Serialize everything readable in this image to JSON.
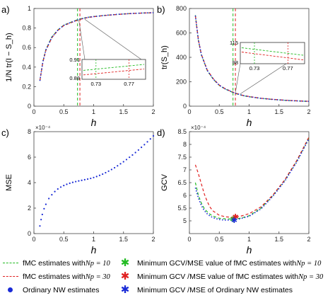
{
  "panels": [
    {
      "letter": "a)",
      "type": "line",
      "ylabel": "1/N tr(I − S_h)",
      "xlabel": "h",
      "xlim": [
        0,
        2
      ],
      "ylim": [
        0,
        1
      ],
      "xticks": [
        "0",
        "0.5",
        "1",
        "1.5",
        "2"
      ],
      "yticks": [
        "0",
        "0.2",
        "0.4",
        "0.6",
        "0.8",
        "1"
      ],
      "ytick_vals": [
        0,
        0.2,
        0.4,
        0.6,
        0.8,
        1
      ],
      "vlines": [
        0.73,
        0.77
      ],
      "inset": {
        "ytop": "0.91",
        "ybottom": "0.88",
        "x1": "0.73",
        "x2": "0.77"
      }
    },
    {
      "letter": "b)",
      "type": "line",
      "ylabel": "tr(S_h)",
      "xlabel": "h",
      "xlim": [
        0,
        2
      ],
      "ylim": [
        0,
        800
      ],
      "xticks": [
        "0",
        "0.5",
        "1",
        "1.5",
        "2"
      ],
      "yticks": [
        "0",
        "200",
        "400",
        "600",
        "800"
      ],
      "ytick_vals": [
        0,
        200,
        400,
        600,
        800
      ],
      "vlines": [
        0.73,
        0.77
      ],
      "inset": {
        "ytop": "115",
        "ybottom": "98",
        "x1": "0.73",
        "x2": "0.77"
      }
    },
    {
      "letter": "c)",
      "type": "scatter",
      "ylabel": "MSE",
      "xlabel": "h",
      "exponent": "×10⁻⁴",
      "xlim": [
        0,
        2
      ],
      "ylim": [
        0,
        8
      ],
      "xticks": [
        "0",
        "0.5",
        "1",
        "1.5",
        "2"
      ],
      "yticks": [
        "0",
        "2",
        "4",
        "6",
        "8"
      ],
      "ytick_vals": [
        0,
        2,
        4,
        6,
        8
      ]
    },
    {
      "letter": "d)",
      "type": "line",
      "ylabel": "GCV",
      "xlabel": "h",
      "exponent": "×10⁻⁴",
      "xlim": [
        0,
        2
      ],
      "ylim": [
        4.5,
        8.5
      ],
      "xticks": [
        "0",
        "0.5",
        "1",
        "1.5",
        "2"
      ],
      "yticks": [
        "5",
        "5.5",
        "6",
        "6.5",
        "7",
        "7.5",
        "8",
        "8.5"
      ],
      "ytick_vals": [
        5,
        5.5,
        6,
        6.5,
        7,
        7.5,
        8,
        8.5
      ]
    }
  ],
  "chart_data": [
    {
      "type": "line",
      "panel": "a)",
      "title": "",
      "xlabel": "h",
      "ylabel": "1/N tr(I − S_h)",
      "xlim": [
        0,
        2
      ],
      "ylim": [
        0,
        1
      ],
      "grid": false,
      "x": [
        0.1,
        0.15,
        0.2,
        0.3,
        0.4,
        0.5,
        0.6,
        0.73,
        0.77,
        0.9,
        1.0,
        1.2,
        1.4,
        1.6,
        1.8,
        2.0
      ],
      "series": [
        {
          "name": "fMC estimates with Np = 10",
          "color": "#22bb22",
          "values": [
            0.26,
            0.46,
            0.58,
            0.71,
            0.78,
            0.83,
            0.855,
            0.885,
            0.893,
            0.91,
            0.918,
            0.93,
            0.94,
            0.948,
            0.953,
            0.957
          ]
        },
        {
          "name": "fMC estimates with Np = 30",
          "color": "#e02020",
          "values": [
            0.26,
            0.45,
            0.57,
            0.7,
            0.775,
            0.825,
            0.85,
            0.88,
            0.888,
            0.907,
            0.916,
            0.929,
            0.939,
            0.947,
            0.953,
            0.957
          ]
        },
        {
          "name": "Ordinary NW estimates",
          "color": "#1a2bd6",
          "values": [
            0.26,
            0.455,
            0.575,
            0.705,
            0.778,
            0.828,
            0.853,
            0.883,
            0.891,
            0.909,
            0.917,
            0.93,
            0.94,
            0.948,
            0.953,
            0.957
          ]
        }
      ],
      "vlines": [
        0.73,
        0.77
      ]
    },
    {
      "type": "line",
      "panel": "b)",
      "title": "",
      "xlabel": "h",
      "ylabel": "tr(S_h)",
      "xlim": [
        0,
        2
      ],
      "ylim": [
        0,
        800
      ],
      "grid": false,
      "x": [
        0.1,
        0.15,
        0.2,
        0.3,
        0.4,
        0.5,
        0.6,
        0.73,
        0.77,
        0.9,
        1.0,
        1.2,
        1.4,
        1.6,
        1.8,
        2.0
      ],
      "series": [
        {
          "name": "fMC estimates with Np = 10",
          "color": "#22bb22",
          "values": [
            745,
            540,
            420,
            290,
            220,
            170,
            140,
            112,
            104,
            86,
            77,
            64,
            55,
            48,
            43,
            39
          ]
        },
        {
          "name": "fMC estimates with Np = 30",
          "color": "#e02020",
          "values": [
            740,
            545,
            425,
            295,
            224,
            173,
            143,
            115,
            107,
            88,
            79,
            65,
            56,
            49,
            44,
            40
          ]
        },
        {
          "name": "Ordinary NW estimates",
          "color": "#1a2bd6",
          "values": [
            742,
            542,
            422,
            292,
            222,
            171,
            141,
            113,
            105,
            87,
            78,
            64,
            55,
            48,
            43,
            39
          ]
        }
      ],
      "vlines": [
        0.73,
        0.77
      ]
    },
    {
      "type": "scatter",
      "panel": "c)",
      "title": "",
      "xlabel": "h",
      "ylabel": "MSE",
      "exponent": "×10⁻⁴",
      "xlim": [
        0,
        2
      ],
      "ylim": [
        0,
        8
      ],
      "grid": false,
      "x": [
        0.1,
        0.12,
        0.14,
        0.17,
        0.2,
        0.25,
        0.3,
        0.35,
        0.4,
        0.45,
        0.5,
        0.55,
        0.6,
        0.65,
        0.7,
        0.75,
        0.8,
        0.85,
        0.9,
        0.95,
        1.0,
        1.05,
        1.1,
        1.15,
        1.2,
        1.25,
        1.3,
        1.35,
        1.4,
        1.45,
        1.5,
        1.55,
        1.6,
        1.65,
        1.7,
        1.75,
        1.8,
        1.85,
        1.9,
        1.95,
        2.0
      ],
      "series": [
        {
          "name": "Ordinary NW estimates",
          "color": "#1a2bd6",
          "values": [
            0.6,
            1.1,
            1.5,
            1.95,
            2.3,
            2.75,
            3.05,
            3.3,
            3.5,
            3.65,
            3.77,
            3.87,
            3.95,
            4.02,
            4.08,
            4.13,
            4.18,
            4.23,
            4.28,
            4.33,
            4.4,
            4.48,
            4.57,
            4.67,
            4.78,
            4.9,
            5.03,
            5.17,
            5.32,
            5.48,
            5.64,
            5.81,
            5.99,
            6.17,
            6.36,
            6.56,
            6.77,
            6.98,
            7.2,
            7.43,
            7.67
          ]
        }
      ]
    },
    {
      "type": "line",
      "panel": "d)",
      "title": "",
      "xlabel": "h",
      "ylabel": "GCV",
      "exponent": "×10⁻⁴",
      "xlim": [
        0,
        2
      ],
      "ylim": [
        4.5,
        8.5
      ],
      "grid": false,
      "x": [
        0.1,
        0.15,
        0.2,
        0.25,
        0.3,
        0.35,
        0.4,
        0.5,
        0.6,
        0.7,
        0.77,
        0.85,
        1.0,
        1.2,
        1.4,
        1.6,
        1.8,
        2.0
      ],
      "series": [
        {
          "name": "fMC estimates with Np = 10",
          "color": "#22bb22",
          "values": [
            6.5,
            6.0,
            5.7,
            5.48,
            5.35,
            5.25,
            5.18,
            5.1,
            5.08,
            5.07,
            5.08,
            5.1,
            5.2,
            5.5,
            6.0,
            6.6,
            7.35,
            8.25
          ]
        },
        {
          "name": "fMC estimates with Np = 30",
          "color": "#e02020",
          "values": [
            7.2,
            6.85,
            6.45,
            6.05,
            5.75,
            5.52,
            5.38,
            5.22,
            5.16,
            5.14,
            5.16,
            5.18,
            5.28,
            5.55,
            6.02,
            6.62,
            7.38,
            8.28
          ]
        },
        {
          "name": "Ordinary NW estimates",
          "color": "#1a2bd6",
          "values": [
            6.3,
            5.9,
            5.6,
            5.4,
            5.27,
            5.18,
            5.12,
            5.05,
            5.03,
            5.03,
            5.05,
            5.08,
            5.18,
            5.47,
            5.97,
            6.57,
            7.32,
            8.22
          ]
        }
      ],
      "minimum_markers": [
        {
          "name": "Minimum GCV/MSE value of fMC estimates with Np = 10",
          "x": 0.73,
          "y": 5.07,
          "color": "#22bb22"
        },
        {
          "name": "Minimum GCV/MSE value of fMC estimates with Np = 30",
          "x": 0.77,
          "y": 5.16,
          "color": "#e02020"
        },
        {
          "name": "Minimum GCV/MSE of Ordinary NW estimates",
          "x": 0.75,
          "y": 5.03,
          "color": "#1a2bd6"
        }
      ]
    }
  ],
  "legend": {
    "left": [
      {
        "text": "fMC estimates with ",
        "np": "Np = 10",
        "color": "#22bb22",
        "symbol": "dash"
      },
      {
        "text": "fMC estimates with ",
        "np": "Np = 30",
        "color": "#e02020",
        "symbol": "dash"
      },
      {
        "text": "Ordinary NW estimates",
        "np": "",
        "color": "#1a2bd6",
        "symbol": "dot"
      }
    ],
    "right": [
      {
        "text": "Minimum GCV/MSE value of fMC estimates with ",
        "np": "Np = 10",
        "color": "#22bb22",
        "symbol": "star"
      },
      {
        "text": "Minimum GCV /MSE value of fMC estimates with ",
        "np": "Np = 30",
        "color": "#e02020",
        "symbol": "star"
      },
      {
        "text": "Minimum GCV /MSE of Ordinary NW estimates",
        "np": "",
        "color": "#1a2bd6",
        "symbol": "star"
      }
    ]
  }
}
